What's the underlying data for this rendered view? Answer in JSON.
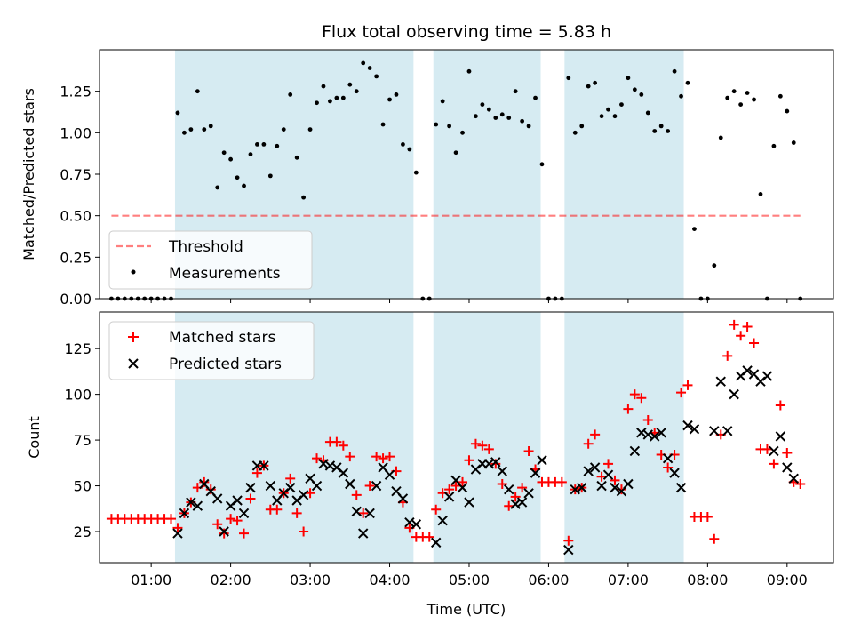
{
  "colors": {
    "shade": "#add8e6",
    "threshold": "#ff0000",
    "measurement": "#000000",
    "matched": "#ff0000",
    "predicted": "#000000",
    "axis": "#000000"
  },
  "chart_data": [
    {
      "type": "scatter",
      "title": "Flux total observing time = 5.83 h",
      "xlabel": "",
      "ylabel": "Matched/Predicted stars",
      "xlim": [
        "00:21",
        "09:35"
      ],
      "ylim": [
        0,
        1.5
      ],
      "x_ticks": [
        "01:00",
        "02:00",
        "03:00",
        "04:00",
        "05:00",
        "06:00",
        "07:00",
        "08:00",
        "09:00"
      ],
      "x_tick_labels_visible": false,
      "y_ticks": [
        0.0,
        0.25,
        0.5,
        0.75,
        1.0,
        1.25
      ],
      "y_tick_labels": [
        "0.00",
        "0.25",
        "0.50",
        "0.75",
        "1.00",
        "1.25"
      ],
      "grid": false,
      "legend_position": "lower-left",
      "shaded_intervals": [
        [
          "01:18",
          "04:18"
        ],
        [
          "04:33",
          "05:54"
        ],
        [
          "06:12",
          "07:42"
        ]
      ],
      "threshold": {
        "name": "Threshold",
        "y": 0.5,
        "x_start": "00:30",
        "x_end": "09:10",
        "style": "dashed"
      },
      "series": [
        {
          "name": "Measurements",
          "marker": "dot",
          "x": [
            "00:30",
            "00:35",
            "00:40",
            "00:45",
            "00:50",
            "00:55",
            "01:00",
            "01:05",
            "01:10",
            "01:15",
            "01:20",
            "01:25",
            "01:30",
            "01:35",
            "01:40",
            "01:45",
            "01:50",
            "01:55",
            "02:00",
            "02:05",
            "02:10",
            "02:15",
            "02:20",
            "02:25",
            "02:30",
            "02:35",
            "02:40",
            "02:45",
            "02:50",
            "02:55",
            "03:00",
            "03:05",
            "03:10",
            "03:15",
            "03:20",
            "03:25",
            "03:30",
            "03:35",
            "03:40",
            "03:45",
            "03:50",
            "03:55",
            "04:00",
            "04:05",
            "04:10",
            "04:15",
            "04:20",
            "04:25",
            "04:30",
            "04:35",
            "04:40",
            "04:45",
            "04:50",
            "04:55",
            "05:00",
            "05:05",
            "05:10",
            "05:15",
            "05:20",
            "05:25",
            "05:30",
            "05:35",
            "05:40",
            "05:45",
            "05:50",
            "05:55",
            "06:00",
            "06:05",
            "06:10",
            "06:15",
            "06:20",
            "06:25",
            "06:30",
            "06:35",
            "06:40",
            "06:45",
            "06:50",
            "06:55",
            "07:00",
            "07:05",
            "07:10",
            "07:15",
            "07:20",
            "07:25",
            "07:30",
            "07:35",
            "07:40",
            "07:45",
            "07:50",
            "07:55",
            "08:00",
            "08:05",
            "08:10",
            "08:15",
            "08:20",
            "08:25",
            "08:30",
            "08:35",
            "08:40",
            "08:45",
            "08:50",
            "08:55",
            "09:00",
            "09:05",
            "09:10"
          ],
          "y": [
            0,
            0,
            0,
            0,
            0,
            0,
            0,
            0,
            0,
            0,
            1.12,
            1.0,
            1.02,
            1.25,
            1.02,
            1.04,
            0.67,
            0.88,
            0.84,
            0.73,
            0.68,
            0.87,
            0.93,
            0.93,
            0.74,
            0.92,
            1.02,
            1.23,
            0.85,
            0.61,
            1.02,
            1.18,
            1.28,
            1.19,
            1.21,
            1.21,
            1.29,
            1.25,
            1.42,
            1.39,
            1.34,
            1.05,
            1.2,
            1.23,
            0.93,
            0.9,
            0.76,
            0,
            0,
            1.05,
            1.19,
            1.04,
            0.88,
            1.0,
            1.37,
            1.1,
            1.17,
            1.14,
            1.09,
            1.11,
            1.09,
            1.25,
            1.07,
            1.04,
            1.21,
            0.81,
            0,
            0,
            0,
            1.33,
            1.0,
            1.04,
            1.28,
            1.3,
            1.1,
            1.14,
            1.1,
            1.17,
            1.33,
            1.26,
            1.23,
            1.12,
            1.01,
            1.04,
            1.01,
            1.37,
            1.22,
            1.3,
            0.42,
            0,
            0,
            0.2,
            0.97,
            1.21,
            1.25,
            1.17,
            1.24,
            1.2,
            0.63,
            0,
            0.92,
            1.22,
            1.13,
            0.94,
            0
          ]
        }
      ]
    },
    {
      "type": "scatter",
      "title": "",
      "xlabel": "Time (UTC)",
      "ylabel": "Count",
      "xlim": [
        "00:21",
        "09:35"
      ],
      "ylim": [
        8,
        145
      ],
      "x_ticks": [
        "01:00",
        "02:00",
        "03:00",
        "04:00",
        "05:00",
        "06:00",
        "07:00",
        "08:00",
        "09:00"
      ],
      "x_tick_labels": [
        "01:00",
        "02:00",
        "03:00",
        "04:00",
        "05:00",
        "06:00",
        "07:00",
        "08:00",
        "09:00"
      ],
      "y_ticks": [
        25,
        50,
        75,
        100,
        125
      ],
      "y_tick_labels": [
        "25",
        "50",
        "75",
        "100",
        "125"
      ],
      "grid": false,
      "legend_position": "upper-left",
      "shaded_intervals": [
        [
          "01:18",
          "04:18"
        ],
        [
          "04:33",
          "05:54"
        ],
        [
          "06:12",
          "07:42"
        ]
      ],
      "series": [
        {
          "name": "Matched stars",
          "marker": "plus",
          "x": [
            "00:30",
            "00:35",
            "00:40",
            "00:45",
            "00:50",
            "00:55",
            "01:00",
            "01:05",
            "01:10",
            "01:15",
            "01:20",
            "01:25",
            "01:30",
            "01:35",
            "01:40",
            "01:45",
            "01:50",
            "01:55",
            "02:00",
            "02:05",
            "02:10",
            "02:15",
            "02:20",
            "02:25",
            "02:30",
            "02:35",
            "02:40",
            "02:45",
            "02:50",
            "02:55",
            "03:00",
            "03:05",
            "03:10",
            "03:15",
            "03:20",
            "03:25",
            "03:30",
            "03:35",
            "03:40",
            "03:45",
            "03:50",
            "03:55",
            "04:00",
            "04:05",
            "04:10",
            "04:15",
            "04:20",
            "04:25",
            "04:30",
            "04:35",
            "04:40",
            "04:45",
            "04:50",
            "04:55",
            "05:00",
            "05:05",
            "05:10",
            "05:15",
            "05:20",
            "05:25",
            "05:30",
            "05:35",
            "05:40",
            "05:45",
            "05:50",
            "05:55",
            "06:00",
            "06:05",
            "06:10",
            "06:15",
            "06:20",
            "06:25",
            "06:30",
            "06:35",
            "06:40",
            "06:45",
            "06:50",
            "06:55",
            "07:00",
            "07:05",
            "07:10",
            "07:15",
            "07:20",
            "07:25",
            "07:30",
            "07:35",
            "07:40",
            "07:45",
            "07:50",
            "07:55",
            "08:00",
            "08:05",
            "08:10",
            "08:15",
            "08:20",
            "08:25",
            "08:30",
            "08:35",
            "08:40",
            "08:45",
            "08:50",
            "08:55",
            "09:00",
            "09:05",
            "09:10"
          ],
          "y": [
            32,
            32,
            32,
            32,
            32,
            32,
            32,
            32,
            32,
            32,
            27,
            35,
            41,
            49,
            52,
            48,
            29,
            24,
            32,
            31,
            24,
            43,
            57,
            61,
            37,
            37,
            46,
            54,
            35,
            25,
            46,
            65,
            64,
            74,
            74,
            72,
            66,
            45,
            35,
            50,
            66,
            65,
            66,
            58,
            41,
            27,
            22,
            22,
            22,
            37,
            46,
            48,
            50,
            52,
            64,
            73,
            72,
            70,
            62,
            51,
            39,
            44,
            49,
            69,
            59,
            52,
            52,
            52,
            52,
            20,
            48,
            49,
            73,
            78,
            55,
            62,
            53,
            48,
            92,
            100,
            98,
            86,
            79,
            67,
            60,
            67,
            101,
            105,
            33,
            33,
            33,
            21,
            78,
            121,
            138,
            132,
            137,
            128,
            70,
            70,
            62,
            94,
            68,
            52,
            51
          ]
        },
        {
          "name": "Predicted stars",
          "marker": "x",
          "x": [
            "01:20",
            "01:25",
            "01:30",
            "01:35",
            "01:40",
            "01:45",
            "01:50",
            "01:55",
            "02:00",
            "02:05",
            "02:10",
            "02:15",
            "02:20",
            "02:25",
            "02:30",
            "02:35",
            "02:40",
            "02:45",
            "02:50",
            "02:55",
            "03:00",
            "03:05",
            "03:10",
            "03:15",
            "03:20",
            "03:25",
            "03:30",
            "03:35",
            "03:40",
            "03:45",
            "03:50",
            "03:55",
            "04:00",
            "04:05",
            "04:10",
            "04:15",
            "04:20",
            "04:35",
            "04:40",
            "04:45",
            "04:50",
            "04:55",
            "05:00",
            "05:05",
            "05:10",
            "05:15",
            "05:20",
            "05:25",
            "05:30",
            "05:35",
            "05:40",
            "05:45",
            "05:50",
            "05:55",
            "06:15",
            "06:20",
            "06:25",
            "06:30",
            "06:35",
            "06:40",
            "06:45",
            "06:50",
            "06:55",
            "07:00",
            "07:05",
            "07:10",
            "07:15",
            "07:20",
            "07:25",
            "07:30",
            "07:35",
            "07:40",
            "07:45",
            "07:50",
            "08:05",
            "08:10",
            "08:15",
            "08:20",
            "08:25",
            "08:30",
            "08:35",
            "08:40",
            "08:45",
            "08:50",
            "08:55",
            "09:00",
            "09:05"
          ],
          "y": [
            24,
            35,
            41,
            39,
            51,
            47,
            43,
            25,
            39,
            42,
            35,
            49,
            61,
            61,
            50,
            42,
            46,
            49,
            42,
            45,
            54,
            50,
            62,
            61,
            60,
            57,
            51,
            36,
            24,
            35,
            50,
            60,
            56,
            47,
            43,
            30,
            29,
            19,
            31,
            44,
            53,
            49,
            41,
            59,
            62,
            62,
            63,
            58,
            48,
            40,
            41,
            46,
            57,
            64,
            15,
            48,
            49,
            58,
            60,
            50,
            56,
            49,
            47,
            51,
            69,
            79,
            78,
            77,
            79,
            65,
            57,
            49,
            83,
            81,
            80,
            107,
            80,
            100,
            110,
            113,
            111,
            107,
            110,
            69,
            77,
            60,
            54
          ]
        }
      ]
    }
  ]
}
